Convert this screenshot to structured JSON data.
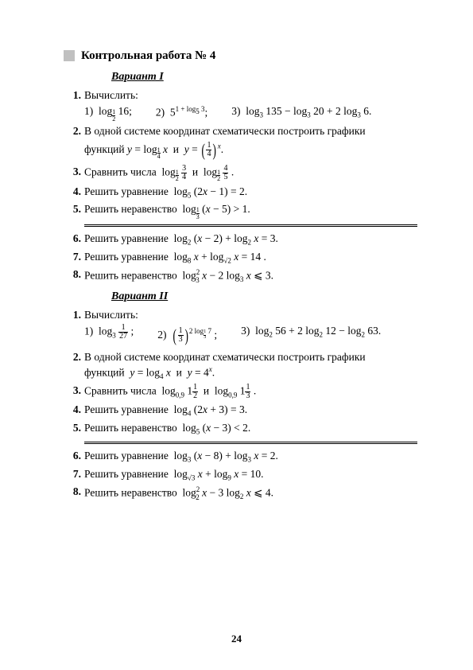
{
  "pageNumber": "24",
  "title": "Контрольная работа № 4",
  "variant1": {
    "heading": "Вариант I",
    "p1": {
      "n": "1.",
      "lead": "Вычислить:"
    },
    "p2": {
      "n": "2.",
      "text": "В одной системе координат схематически построить графики"
    },
    "p3": {
      "n": "3."
    },
    "p4": {
      "n": "4."
    },
    "p5": {
      "n": "5."
    },
    "p6": {
      "n": "6."
    },
    "p7": {
      "n": "7."
    },
    "p8": {
      "n": "8."
    }
  },
  "variant2": {
    "heading": "Вариант II",
    "p1": {
      "n": "1.",
      "lead": "Вычислить:"
    },
    "p2": {
      "n": "2.",
      "text": "В одной системе координат схематически построить графики"
    },
    "p3": {
      "n": "3."
    },
    "p4": {
      "n": "4."
    },
    "p5": {
      "n": "5."
    },
    "p6": {
      "n": "6."
    },
    "p7": {
      "n": "7."
    },
    "p8": {
      "n": "8."
    }
  }
}
